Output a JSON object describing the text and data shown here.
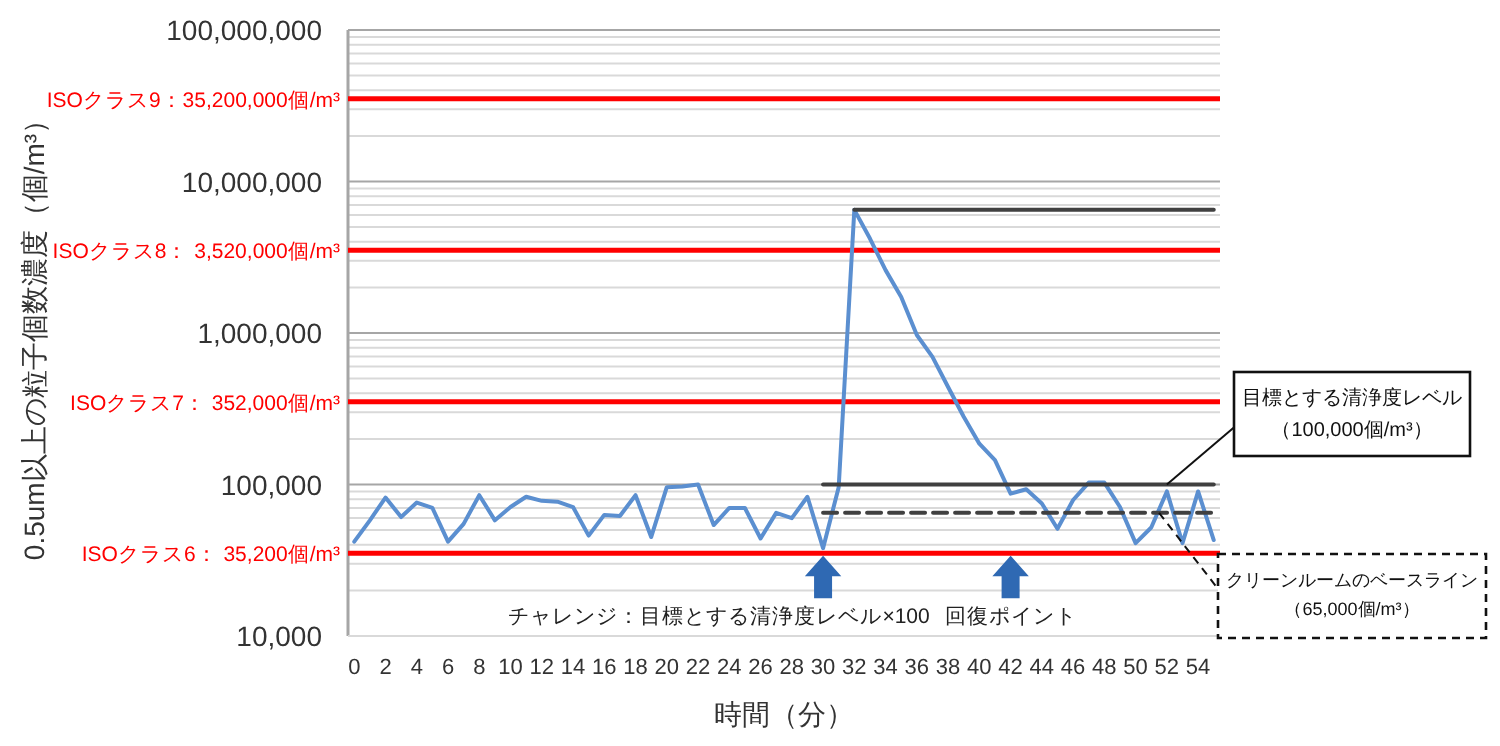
{
  "chart_data": {
    "type": "line",
    "xlabel": "時間（分）",
    "ylabel": "0.5um以上の粒子個数濃度（個/m³）",
    "log": "y",
    "grid": "y",
    "xlim": [
      -0.4,
      55.4
    ],
    "xticks": [
      0,
      2,
      4,
      6,
      8,
      10,
      12,
      14,
      16,
      18,
      20,
      22,
      24,
      26,
      28,
      30,
      32,
      34,
      36,
      38,
      40,
      42,
      44,
      46,
      48,
      50,
      52,
      54
    ],
    "ylim": [
      10000,
      100000000
    ],
    "yticks": [
      {
        "value": 10000,
        "label": "10,000"
      },
      {
        "value": 100000,
        "label": "100,000"
      },
      {
        "value": 1000000,
        "label": "1,000,000"
      },
      {
        "value": 10000000,
        "label": "10,000,000"
      },
      {
        "value": 100000000,
        "label": "100,000,000"
      }
    ],
    "series": [
      {
        "color": "#5b8fd0",
        "line_style": "solid",
        "x": [
          0,
          1,
          2,
          3,
          4,
          5,
          6,
          7,
          8,
          9,
          10,
          11,
          12,
          13,
          14,
          15,
          16,
          17,
          18,
          19,
          20,
          21,
          22,
          23,
          24,
          25,
          26,
          27,
          28,
          29,
          30,
          31,
          32,
          33,
          34,
          35,
          36,
          37,
          38,
          39,
          40,
          41,
          42,
          43,
          44,
          45,
          46,
          47,
          48,
          49,
          50,
          51,
          52,
          53,
          54,
          55
        ],
        "values": [
          42000,
          58000,
          82000,
          61000,
          76000,
          70000,
          42000,
          55000,
          85000,
          58000,
          71000,
          83000,
          78000,
          77000,
          71000,
          46000,
          63000,
          62000,
          85000,
          45000,
          96000,
          97000,
          100000,
          54000,
          70000,
          70000,
          44000,
          65000,
          60000,
          83000,
          38000,
          96000,
          6500000,
          4200000,
          2600000,
          1730000,
          970000,
          695000,
          440000,
          280000,
          186000,
          145000,
          87000,
          93000,
          75000,
          51000,
          79000,
          103000,
          103000,
          71000,
          41000,
          52000,
          90000,
          41000,
          90000,
          43000
        ]
      },
      {
        "color": "#404040",
        "line_style": "solid",
        "x": [
          32,
          55
        ],
        "values": [
          6500000,
          6500000
        ]
      },
      {
        "color": "#404040",
        "line_style": "solid",
        "x": [
          30,
          55
        ],
        "values": [
          100000,
          100000
        ]
      },
      {
        "color": "#404040",
        "line_style": "dashed",
        "x": [
          30,
          55
        ],
        "values": [
          65000,
          65000
        ]
      }
    ],
    "ref_lines": [
      {
        "axis": "y",
        "value": 35200000,
        "label": "ISOクラス9：35,200,000個/m³",
        "color": "#ff0000"
      },
      {
        "axis": "y",
        "value": 3520000,
        "label": "ISOクラス8：  3,520,000個/m³",
        "color": "#ff0000"
      },
      {
        "axis": "y",
        "value": 352000,
        "label": "ISOクラス7：    352,000個/m³",
        "color": "#ff0000"
      },
      {
        "axis": "y",
        "value": 35200,
        "label": "ISOクラス6：    35,200個/m³",
        "color": "#ff0000"
      }
    ],
    "annotations": [
      {
        "text": "チャレンジ：目標とする清浄度レベル×100",
        "x": 30,
        "y": 35200
      },
      {
        "text": "回復ポイント",
        "x": 42,
        "y": 35200
      },
      {
        "text": "目標とする清浄度レベル（100,000個/m³）",
        "x": 52,
        "y": 100000
      },
      {
        "text": "クリーンルームのベースライン（65,000個/m³）",
        "x": 51.5,
        "y": 65000
      }
    ]
  }
}
